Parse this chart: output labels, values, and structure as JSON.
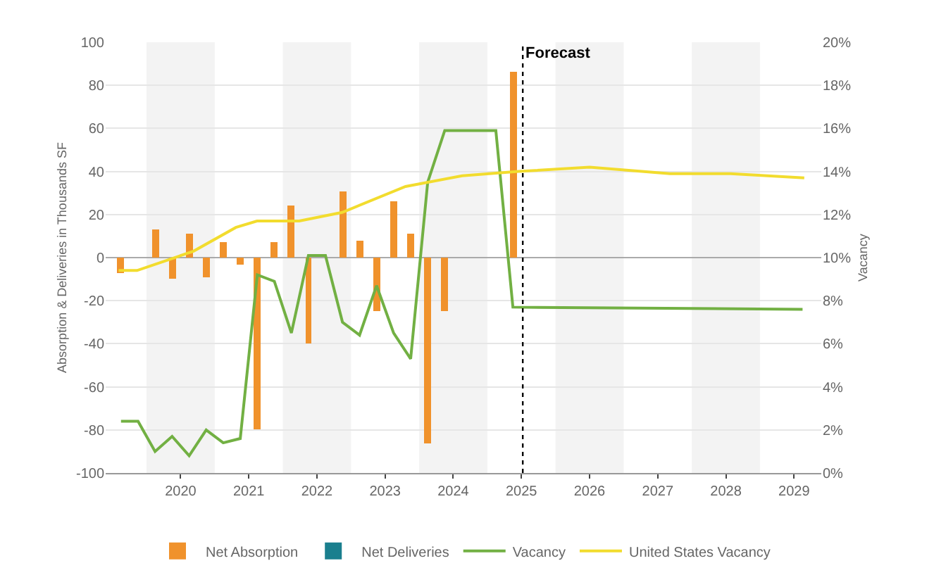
{
  "chart_data": {
    "type": "bar",
    "ylabel": "Absorption & Deliveries in Thousands SF",
    "y2label": "Vacancy",
    "xlim": [
      2019.4,
      2029.9
    ],
    "xticks": [
      {
        "value": 2020.5,
        "label": "2020"
      },
      {
        "value": 2021.5,
        "label": "2021"
      },
      {
        "value": 2022.5,
        "label": "2022"
      },
      {
        "value": 2023.5,
        "label": "2023"
      },
      {
        "value": 2024.5,
        "label": "2024"
      },
      {
        "value": 2025.5,
        "label": "2025"
      },
      {
        "value": 2026.5,
        "label": "2026"
      },
      {
        "value": 2027.5,
        "label": "2027"
      },
      {
        "value": 2028.5,
        "label": "2028"
      },
      {
        "value": 2029.5,
        "label": "2029"
      }
    ],
    "ylim": [
      -100,
      100
    ],
    "yticks": [
      -100,
      -80,
      -60,
      -40,
      -20,
      0,
      20,
      40,
      60,
      80,
      100
    ],
    "y2lim": [
      0,
      20
    ],
    "y2ticks": [
      {
        "value": 0,
        "label": "0%"
      },
      {
        "value": 2,
        "label": "2%"
      },
      {
        "value": 4,
        "label": "4%"
      },
      {
        "value": 6,
        "label": "6%"
      },
      {
        "value": 8,
        "label": "8%"
      },
      {
        "value": 10,
        "label": "10%"
      },
      {
        "value": 12,
        "label": "12%"
      },
      {
        "value": 14,
        "label": "14%"
      },
      {
        "value": 16,
        "label": "16%"
      },
      {
        "value": 18,
        "label": "18%"
      },
      {
        "value": 20,
        "label": "20%"
      }
    ],
    "x": [
      2019.625,
      2019.875,
      2020.125,
      2020.375,
      2020.625,
      2020.875,
      2021.125,
      2021.375,
      2021.625,
      2021.875,
      2022.125,
      2022.375,
      2022.625,
      2022.875,
      2023.125,
      2023.375,
      2023.625,
      2023.875,
      2024.125,
      2024.375,
      2024.625,
      2024.875,
      2025.125,
      2025.375
    ],
    "series": [
      {
        "name": "Net Absorption",
        "color": "#f0922c",
        "values": [
          -7,
          null,
          13,
          -10,
          11,
          -9,
          7,
          -3,
          -80,
          7,
          24,
          -40,
          null,
          31,
          8,
          -25,
          26,
          11,
          -86,
          -25,
          null,
          null,
          null,
          86
        ]
      },
      {
        "name": "Net Deliveries",
        "color": "#1a7f8e",
        "values": [
          null,
          null,
          null,
          null,
          null,
          null,
          null,
          null,
          null,
          null,
          null,
          null,
          null,
          null,
          null,
          null,
          null,
          null,
          null,
          null,
          null,
          null,
          null,
          null
        ]
      },
      {
        "name": "Vacancy",
        "type": "line",
        "axis": "y2",
        "color": "#72b043",
        "x": [
          2019.625,
          2019.875,
          2020.125,
          2020.375,
          2020.625,
          2020.875,
          2021.125,
          2021.375,
          2021.625,
          2021.875,
          2022.125,
          2022.375,
          2022.625,
          2022.875,
          2023.125,
          2023.375,
          2023.625,
          2023.875,
          2024.125,
          2024.375,
          2024.625,
          2024.875,
          2025.125,
          2025.375,
          2029.625
        ],
        "values": [
          2.4,
          2.4,
          1.0,
          1.7,
          0.8,
          2.0,
          1.4,
          1.6,
          9.2,
          8.9,
          6.5,
          10.1,
          10.1,
          7.0,
          6.4,
          8.7,
          6.5,
          5.3,
          13.5,
          15.9,
          15.9,
          15.9,
          15.9,
          7.7,
          7.6
        ]
      },
      {
        "name": "United States Vacancy",
        "type": "line",
        "axis": "y2",
        "color": "#f2dc2e",
        "x": [
          2019.59,
          2019.86,
          2020.69,
          2021.31,
          2021.62,
          2022.24,
          2022.87,
          2023.8,
          2024.63,
          2025.46,
          2026.5,
          2027.68,
          2028.57,
          2029.65
        ],
        "values": [
          9.4,
          9.4,
          10.3,
          11.4,
          11.7,
          11.7,
          12.1,
          13.3,
          13.8,
          14.0,
          14.2,
          13.9,
          13.9,
          13.7
        ]
      }
    ],
    "ref_lines": [
      {
        "axis": "x",
        "value": 2025.52,
        "label": "Forecast",
        "color": "#000000",
        "line_style": "dotted"
      }
    ],
    "bands": [
      {
        "axis": "x",
        "from": 2020,
        "to": 2021,
        "color": "#f3f3f3"
      },
      {
        "axis": "x",
        "from": 2022,
        "to": 2023,
        "color": "#f3f3f3"
      },
      {
        "axis": "x",
        "from": 2024,
        "to": 2025,
        "color": "#f3f3f3"
      },
      {
        "axis": "x",
        "from": 2026,
        "to": 2027,
        "color": "#f3f3f3"
      },
      {
        "axis": "x",
        "from": 2028,
        "to": 2029,
        "color": "#f3f3f3"
      }
    ],
    "grid": "y",
    "legend": "bottom",
    "marker": "none",
    "line_style": "solid"
  }
}
